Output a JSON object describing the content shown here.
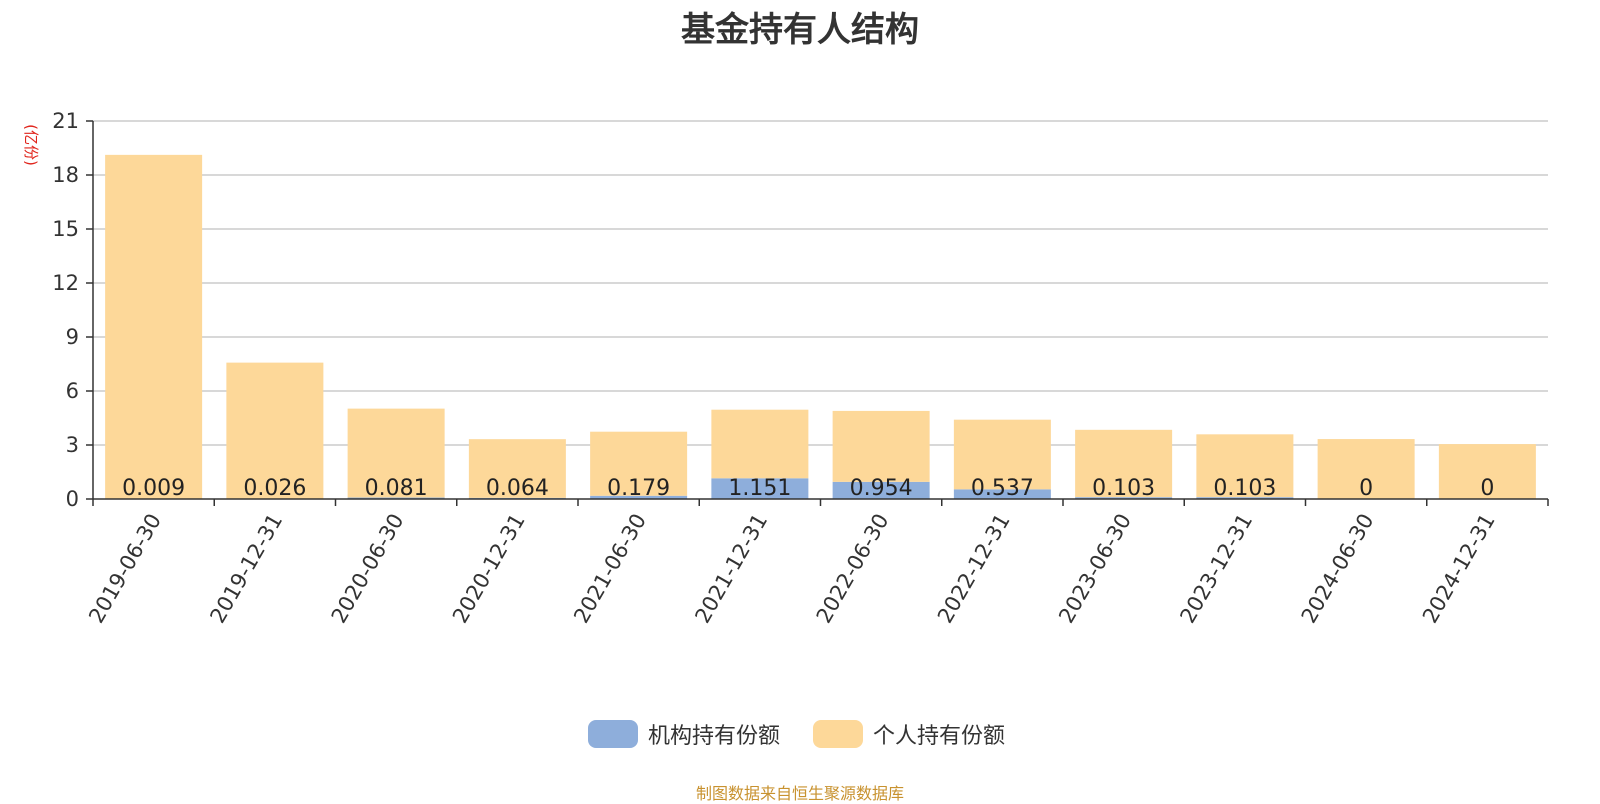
{
  "chart_data": {
    "type": "bar",
    "stacked": true,
    "title": "基金持有人结构",
    "ylabel": "(亿份)",
    "ylim": [
      0,
      21
    ],
    "yticks": [
      0,
      3,
      6,
      9,
      12,
      15,
      18,
      21
    ],
    "grid": true,
    "legend_position": "bottom",
    "categories": [
      "2019-06-30",
      "2019-12-31",
      "2020-06-30",
      "2020-12-31",
      "2021-06-30",
      "2021-12-31",
      "2022-06-30",
      "2022-12-31",
      "2023-06-30",
      "2023-12-31",
      "2024-06-30",
      "2024-12-31"
    ],
    "series": [
      {
        "name": "机构持有份额",
        "color": "#8eaedb",
        "values": [
          0.009,
          0.026,
          0.081,
          0.064,
          0.179,
          1.151,
          0.954,
          0.537,
          0.103,
          0.103,
          0,
          0
        ],
        "labels": [
          "0.009",
          "0.026",
          "0.081",
          "0.064",
          "0.179",
          "1.151",
          "0.954",
          "0.537",
          "0.103",
          "0.103",
          "0",
          "0"
        ]
      },
      {
        "name": "个人持有份额",
        "color": "#fdd899",
        "values": [
          19.11,
          7.55,
          4.94,
          3.26,
          3.56,
          3.81,
          3.94,
          3.87,
          3.74,
          3.49,
          3.33,
          3.05
        ]
      }
    ]
  },
  "footer": "制图数据来自恒生聚源数据库"
}
